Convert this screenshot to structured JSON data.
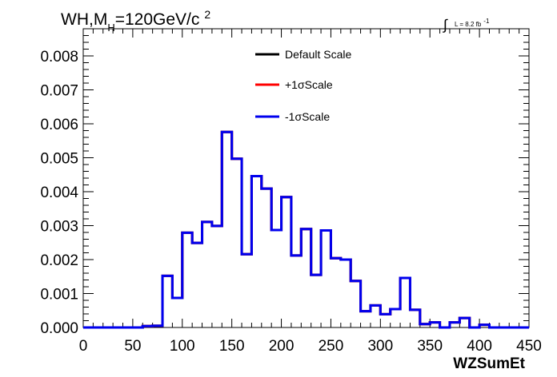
{
  "chart_data": {
    "type": "line",
    "title": {
      "main": "WH,M",
      "subscript": "H",
      "rest": "=120GeV/c",
      "superscript": "2"
    },
    "luminosity": {
      "integral": "∫",
      "label": "L = 8.2 fb",
      "exponent": "-1"
    },
    "xlabel": "WZSumEt",
    "ylabel": "",
    "xlim": [
      0,
      450
    ],
    "ylim": [
      0,
      0.0088
    ],
    "x_ticks": [
      "0",
      "50",
      "100",
      "150",
      "200",
      "250",
      "300",
      "350",
      "400",
      "450"
    ],
    "y_ticks": [
      "0.000",
      "0.001",
      "0.002",
      "0.003",
      "0.004",
      "0.005",
      "0.006",
      "0.007",
      "0.008"
    ],
    "bin_width": 10,
    "bin_edges_start": 0,
    "legend_position": "top-center",
    "series": [
      {
        "name": "Default Scale",
        "color": "#000000",
        "values": [
          0,
          0,
          0,
          0,
          0,
          0,
          4e-05,
          5e-05,
          0.00152,
          0.00087,
          0.00279,
          0.00249,
          0.00311,
          0.00299,
          0.00576,
          0.00497,
          0.00216,
          0.00446,
          0.00409,
          0.00287,
          0.00384,
          0.00212,
          0.0029,
          0.00155,
          0.00286,
          0.00204,
          0.002,
          0.00137,
          0.00048,
          0.00065,
          0.00039,
          0.00054,
          0.00146,
          0.00052,
          0.0001,
          0.00015,
          0,
          0.00015,
          0.00028,
          0,
          8e-05,
          0,
          0,
          0,
          0
        ]
      },
      {
        "name": "+1σScale",
        "color": "#ff0000",
        "values": [
          0,
          0,
          0,
          0,
          0,
          0,
          4e-05,
          5e-05,
          0.00152,
          0.00087,
          0.00279,
          0.00249,
          0.00311,
          0.00299,
          0.00576,
          0.00497,
          0.00216,
          0.00446,
          0.00409,
          0.00287,
          0.00384,
          0.00212,
          0.0029,
          0.00155,
          0.00286,
          0.00204,
          0.002,
          0.00137,
          0.00048,
          0.00065,
          0.00039,
          0.00054,
          0.00146,
          0.00052,
          0.0001,
          0.00015,
          0,
          0.00015,
          0.00028,
          0,
          8e-05,
          0,
          0,
          0,
          0
        ]
      },
      {
        "name": "-1σScale",
        "color": "#0000ee",
        "values": [
          0,
          0,
          0,
          0,
          0,
          0,
          4e-05,
          5e-05,
          0.00152,
          0.00087,
          0.00279,
          0.00249,
          0.00311,
          0.00299,
          0.00576,
          0.00497,
          0.00216,
          0.00446,
          0.00409,
          0.00287,
          0.00384,
          0.00212,
          0.0029,
          0.00155,
          0.00286,
          0.00204,
          0.002,
          0.00137,
          0.00048,
          0.00065,
          0.00039,
          0.00054,
          0.00146,
          0.00052,
          0.0001,
          0.00015,
          0,
          0.00015,
          0.00028,
          0,
          8e-05,
          0,
          0,
          0,
          0
        ]
      }
    ]
  }
}
